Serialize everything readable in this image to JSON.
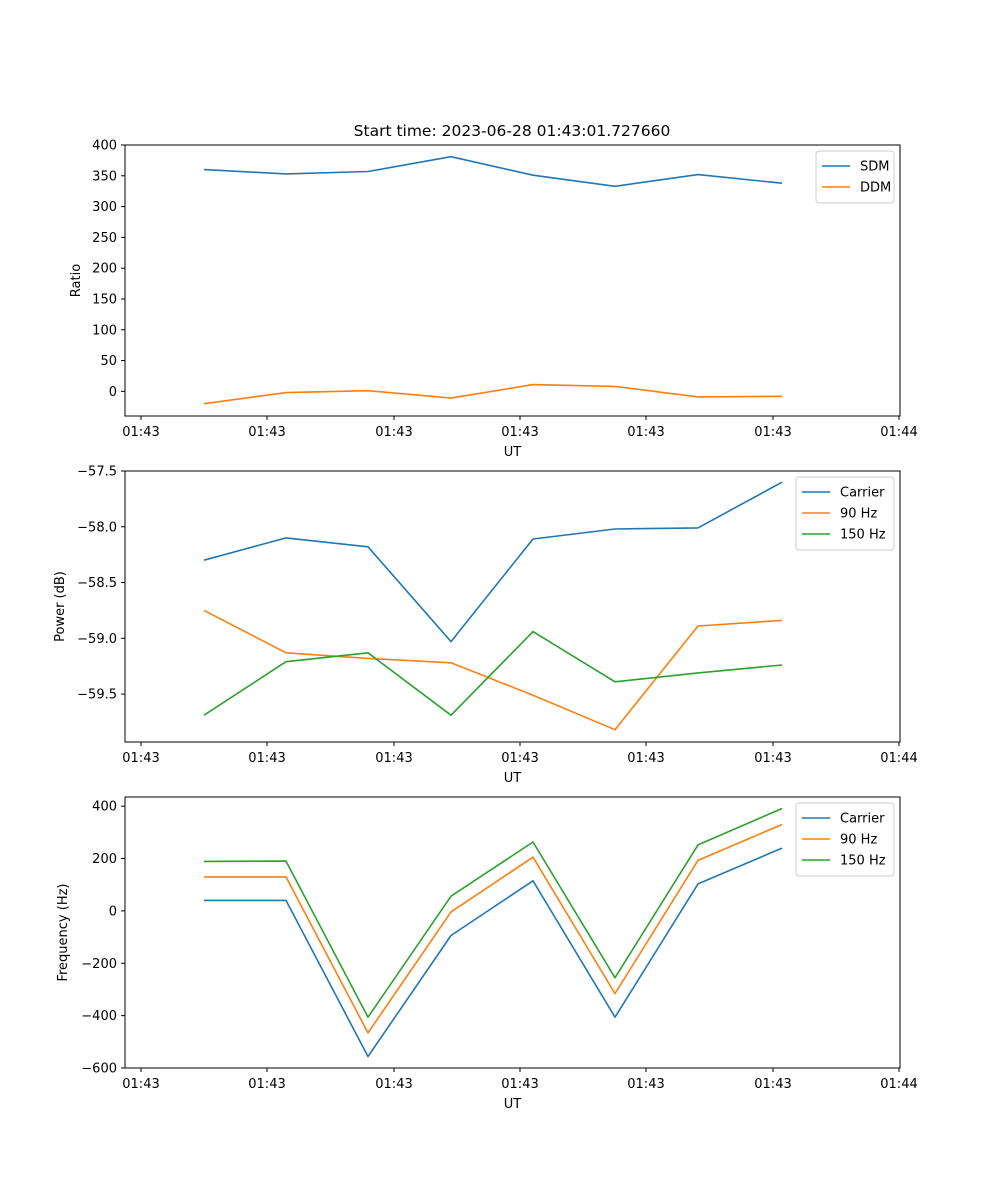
{
  "title": "Start time: 2023-06-28 01:43:01.727660",
  "chart_data": [
    {
      "type": "line",
      "title": "Start time: 2023-06-28 01:43:01.727660",
      "xlabel": "UT",
      "ylabel": "Ratio",
      "x_tick_labels": [
        "01:43",
        "01:43",
        "01:43",
        "01:43",
        "01:43",
        "01:43",
        "01:44"
      ],
      "y_ticks": [
        0,
        50,
        100,
        150,
        200,
        250,
        300,
        350,
        400
      ],
      "y_tick_labels": [
        "0",
        "50",
        "100",
        "150",
        "200",
        "250",
        "300",
        "350",
        "400"
      ],
      "ylim": [
        -40,
        400
      ],
      "legend": "top-right",
      "grid": false,
      "series": [
        {
          "name": "SDM",
          "color": "#1f77b4",
          "values": [
            360,
            353,
            357,
            381,
            351,
            333,
            352,
            338
          ]
        },
        {
          "name": "DDM",
          "color": "#ff7f0e",
          "values": [
            -20,
            -2,
            1,
            -11,
            11,
            8,
            -9,
            -8
          ]
        }
      ]
    },
    {
      "type": "line",
      "xlabel": "UT",
      "ylabel": "Power (dB)",
      "x_tick_labels": [
        "01:43",
        "01:43",
        "01:43",
        "01:43",
        "01:43",
        "01:43",
        "01:44"
      ],
      "y_ticks": [
        -59.5,
        -59.0,
        -58.5,
        -58.0,
        -57.5
      ],
      "y_tick_labels": [
        "−59.5",
        "−59.0",
        "−58.5",
        "−58.0",
        "−57.5"
      ],
      "ylim": [
        -59.93,
        -57.5
      ],
      "legend": "top-right",
      "grid": false,
      "series": [
        {
          "name": "Carrier",
          "color": "#1f77b4",
          "values": [
            -58.3,
            -58.1,
            -58.18,
            -59.03,
            -58.11,
            -58.02,
            -58.01,
            -57.6
          ]
        },
        {
          "name": "90 Hz",
          "color": "#ff7f0e",
          "values": [
            -58.75,
            -59.13,
            -59.18,
            -59.22,
            -59.51,
            -59.82,
            -58.89,
            -58.84
          ]
        },
        {
          "name": "150 Hz",
          "color": "#2ca02c",
          "values": [
            -59.69,
            -59.21,
            -59.13,
            -59.69,
            -58.94,
            -59.39,
            -59.31,
            -59.24
          ]
        }
      ]
    },
    {
      "type": "line",
      "xlabel": "UT",
      "ylabel": "Frequency (Hz)",
      "x_tick_labels": [
        "01:43",
        "01:43",
        "01:43",
        "01:43",
        "01:43",
        "01:43",
        "01:44"
      ],
      "y_ticks": [
        -600,
        -400,
        -200,
        0,
        200,
        400
      ],
      "y_tick_labels": [
        "−600",
        "−400",
        "−200",
        "0",
        "200",
        "400"
      ],
      "ylim": [
        -600,
        435
      ],
      "legend": "top-right",
      "grid": false,
      "series": [
        {
          "name": "Carrier",
          "color": "#1f77b4",
          "values": [
            40,
            40,
            -556,
            -94,
            115,
            -406,
            103,
            240
          ]
        },
        {
          "name": "90 Hz",
          "color": "#ff7f0e",
          "values": [
            130,
            130,
            -466,
            -4,
            205,
            -316,
            193,
            330
          ]
        },
        {
          "name": "150 Hz",
          "color": "#2ca02c",
          "values": [
            189,
            190,
            -406,
            56,
            263,
            -255,
            252,
            391
          ]
        }
      ]
    }
  ]
}
